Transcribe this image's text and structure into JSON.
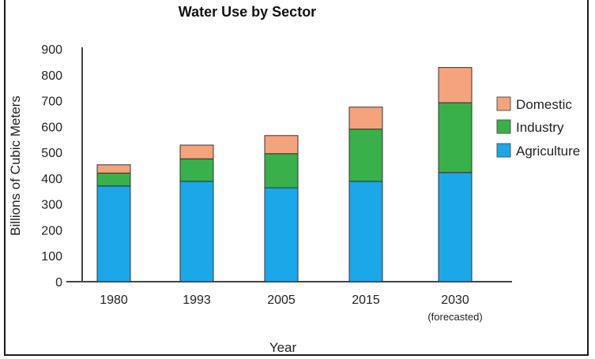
{
  "chart_data": {
    "type": "bar",
    "stacked": true,
    "title": "Water Use by Sector",
    "xlabel": "Year",
    "ylabel": "Billions of Cubic Meters",
    "ylim": [
      0,
      900
    ],
    "yticks": [
      0,
      100,
      200,
      300,
      400,
      500,
      600,
      700,
      800,
      900
    ],
    "grid": false,
    "categories": [
      "1980",
      "1993",
      "2005",
      "2015",
      "2030"
    ],
    "category_sublabels": [
      "",
      "",
      "",
      "",
      "(forecasted)"
    ],
    "legend_position": "right",
    "series": [
      {
        "name": "Agriculture",
        "color": "#1ca7e8",
        "values": [
          370,
          388,
          363,
          388,
          422
        ]
      },
      {
        "name": "Industry",
        "color": "#39b04a",
        "values": [
          50,
          87,
          132,
          202,
          270
        ]
      },
      {
        "name": "Domestic",
        "color": "#f4a37d",
        "values": [
          32,
          53,
          70,
          85,
          136
        ]
      }
    ],
    "legend_order": [
      "Domestic",
      "Industry",
      "Agriculture"
    ]
  }
}
